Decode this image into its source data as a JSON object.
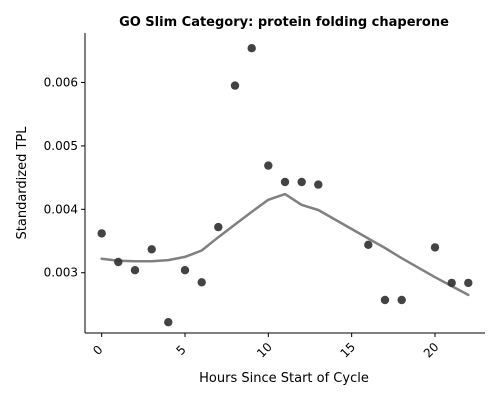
{
  "chart_data": {
    "type": "scatter",
    "title": "GO Slim Category: protein folding chaperone",
    "xlabel": "Hours Since Start of Cycle",
    "ylabel": "Standardized TPL",
    "xlim": [
      -1,
      23
    ],
    "ylim": [
      0.00205,
      0.00678
    ],
    "xticks": [
      0,
      5,
      10,
      15,
      20
    ],
    "xtick_labels": [
      "0",
      "5",
      "10",
      "15",
      "20"
    ],
    "xtick_rotation": 45,
    "yticks": [
      0.003,
      0.004,
      0.005,
      0.006
    ],
    "ytick_labels": [
      "0.003",
      "0.004",
      "0.005",
      "0.006"
    ],
    "grid": false,
    "colors": {
      "points": "#333333",
      "trend": "#808080"
    },
    "series": [
      {
        "kind": "points",
        "x": [
          0,
          1,
          2,
          3,
          4,
          5,
          6,
          7,
          8,
          9,
          10,
          11,
          12,
          13,
          16,
          17,
          18,
          20,
          21,
          22
        ],
        "y": [
          0.00362,
          0.00317,
          0.00304,
          0.00337,
          0.00222,
          0.00304,
          0.00285,
          0.00372,
          0.00595,
          0.00654,
          0.00469,
          0.00443,
          0.00443,
          0.00439,
          0.00344,
          0.00257,
          0.00257,
          0.0034,
          0.00284,
          0.00284
        ]
      },
      {
        "kind": "trend-line",
        "x": [
          0,
          1,
          2,
          3,
          4,
          5,
          6,
          7,
          8,
          9,
          10,
          11,
          12,
          13,
          16,
          17,
          18,
          20,
          21,
          22
        ],
        "y": [
          0.00322,
          0.00319,
          0.00318,
          0.00318,
          0.0032,
          0.00325,
          0.00335,
          0.00356,
          0.00376,
          0.00396,
          0.00415,
          0.00424,
          0.00407,
          0.00399,
          0.00354,
          0.00339,
          0.00323,
          0.00293,
          0.00279,
          0.00265
        ]
      }
    ]
  }
}
